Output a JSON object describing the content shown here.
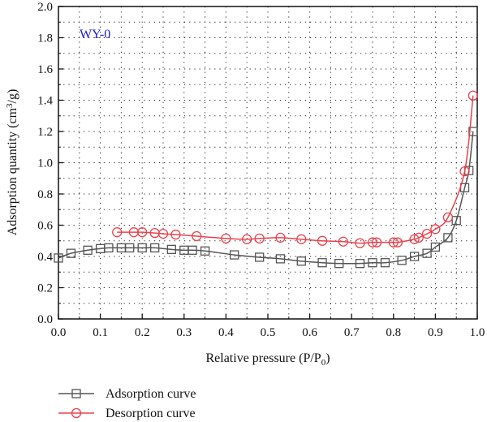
{
  "chart_data": {
    "type": "line",
    "annotation": "WY-0",
    "xlabel": {
      "main": "Relative pressure (P/P",
      "sub": "0",
      "end": ")"
    },
    "ylabel": {
      "main": "Adsorption quantity (cm",
      "sup": "3",
      "end": "/g)"
    },
    "xlim": [
      0.0,
      1.0
    ],
    "ylim": [
      0.0,
      2.0
    ],
    "xticks": [
      "0.0",
      "0.1",
      "0.2",
      "0.3",
      "0.4",
      "0.5",
      "0.6",
      "0.7",
      "0.8",
      "0.9",
      "1.0"
    ],
    "yticks": [
      "0.0",
      "0.2",
      "0.4",
      "0.6",
      "0.8",
      "1.0",
      "1.2",
      "1.4",
      "1.6",
      "1.8",
      "2.0"
    ],
    "grid": true,
    "legend_position": "bottom-left",
    "series": [
      {
        "name": "Adsorption curve",
        "color": "#555555",
        "marker": "square",
        "x": [
          0.0,
          0.03,
          0.07,
          0.1,
          0.12,
          0.15,
          0.17,
          0.2,
          0.23,
          0.27,
          0.3,
          0.32,
          0.35,
          0.42,
          0.48,
          0.53,
          0.58,
          0.63,
          0.67,
          0.72,
          0.75,
          0.78,
          0.82,
          0.85,
          0.88,
          0.9,
          0.93,
          0.95,
          0.97,
          0.98,
          0.99
        ],
        "y": [
          0.39,
          0.42,
          0.44,
          0.45,
          0.455,
          0.455,
          0.455,
          0.455,
          0.455,
          0.445,
          0.44,
          0.44,
          0.435,
          0.41,
          0.395,
          0.385,
          0.37,
          0.36,
          0.355,
          0.355,
          0.36,
          0.36,
          0.375,
          0.4,
          0.42,
          0.46,
          0.52,
          0.63,
          0.84,
          0.95,
          1.2
        ]
      },
      {
        "name": "Desorption curve",
        "color": "#e8434e",
        "marker": "circle",
        "x": [
          0.14,
          0.18,
          0.2,
          0.23,
          0.25,
          0.28,
          0.33,
          0.4,
          0.45,
          0.48,
          0.53,
          0.58,
          0.63,
          0.68,
          0.72,
          0.75,
          0.76,
          0.8,
          0.81,
          0.85,
          0.86,
          0.88,
          0.9,
          0.93,
          0.97,
          0.99
        ],
        "y": [
          0.555,
          0.555,
          0.555,
          0.55,
          0.545,
          0.54,
          0.53,
          0.515,
          0.51,
          0.515,
          0.52,
          0.51,
          0.5,
          0.495,
          0.485,
          0.49,
          0.49,
          0.49,
          0.49,
          0.51,
          0.52,
          0.545,
          0.575,
          0.65,
          0.945,
          1.43
        ]
      }
    ]
  }
}
